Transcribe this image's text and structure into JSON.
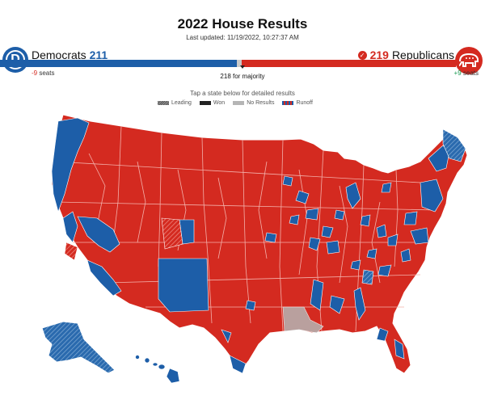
{
  "title": "2022 House Results",
  "last_updated": "Last updated: 11/19/2022, 10:27:37 AM",
  "democrats": {
    "name": "Democrats",
    "seats": "211",
    "change": "-9",
    "change_suffix": " seats",
    "color": "#1d5ea8"
  },
  "republicans": {
    "name": "Republicans",
    "seats": "219",
    "change": "+9",
    "change_suffix": " seats",
    "color": "#d42a20",
    "won": true
  },
  "majority_label": "218 for majority",
  "instructions": "Tap a state below for detailed results",
  "legend": [
    {
      "label": "Leading",
      "swatch": "leading"
    },
    {
      "label": "Won",
      "swatch": "won"
    },
    {
      "label": "No Results",
      "swatch": "nores"
    },
    {
      "label": "Runoff",
      "swatch": "runoff"
    }
  ],
  "icons": {
    "dem_logo": "democrat-d-icon",
    "rep_logo": "republican-elephant-icon",
    "won_check": "check-icon"
  }
}
